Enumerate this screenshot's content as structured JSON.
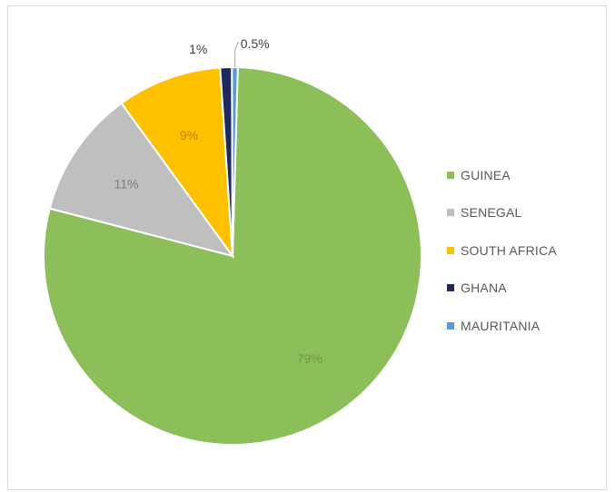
{
  "chart_data": {
    "type": "pie",
    "title": "",
    "slices": [
      {
        "name": "GUINEA",
        "value": 79,
        "label": "79%",
        "color": "#8cbf5a",
        "label_color": "#6f9a45"
      },
      {
        "name": "SENEGAL",
        "value": 11,
        "label": "11%",
        "color": "#bfbfbf",
        "label_color": "#7f7f7f"
      },
      {
        "name": "SOUTH AFRICA",
        "value": 9,
        "label": "9%",
        "color": "#ffc000",
        "label_color": "#b8860b"
      },
      {
        "name": "GHANA",
        "value": 1,
        "label": "1%",
        "color": "#1f2a5c",
        "label_color": "#404040"
      },
      {
        "name": "MAURITANIA",
        "value": 0.5,
        "label": "0.5%",
        "color": "#5b9bd5",
        "label_color": "#404040"
      }
    ],
    "legend_position": "right"
  }
}
